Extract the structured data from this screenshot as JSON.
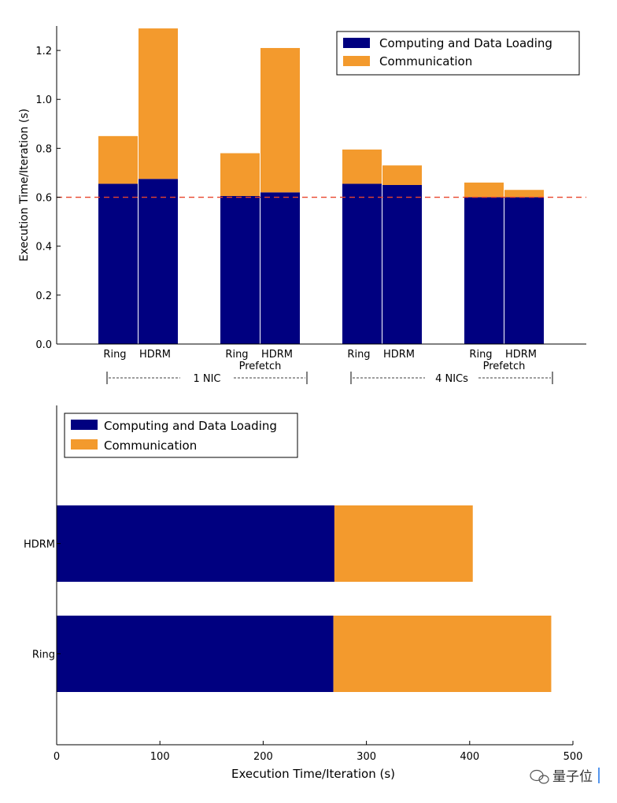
{
  "colors": {
    "computing": "#000080",
    "communication": "#F39A2D",
    "threshold": "#E8452C"
  },
  "watermark": {
    "text": "量子位"
  },
  "chart_data": [
    {
      "type": "bar",
      "orientation": "vertical",
      "stacked": true,
      "ylabel": "Execution Time/Iteration (s)",
      "ylim": [
        0,
        1.3
      ],
      "yticks": [
        "0.0",
        "0.2",
        "0.4",
        "0.6",
        "0.8",
        "1.0",
        "1.2"
      ],
      "ytick_values": [
        0,
        0.2,
        0.4,
        0.6,
        0.8,
        1.0,
        1.2
      ],
      "threshold": 0.6,
      "legend": {
        "position": "top-right",
        "entries": [
          "Computing and Data Loading",
          "Communication"
        ]
      },
      "bars": [
        {
          "label": "Ring",
          "sublabel": "",
          "computing": 0.655,
          "total": 0.85
        },
        {
          "label": "HDRM",
          "sublabel": "",
          "computing": 0.675,
          "total": 1.29
        },
        {
          "label": "Ring",
          "sublabel": "Prefetch",
          "computing": 0.605,
          "total": 0.78
        },
        {
          "label": "HDRM",
          "sublabel": "Prefetch",
          "computing": 0.62,
          "total": 1.21
        },
        {
          "label": "Ring",
          "sublabel": "",
          "computing": 0.655,
          "total": 0.795
        },
        {
          "label": "HDRM",
          "sublabel": "",
          "computing": 0.65,
          "total": 0.73
        },
        {
          "label": "Ring",
          "sublabel": "Prefetch",
          "computing": 0.6,
          "total": 0.66
        },
        {
          "label": "HDRM",
          "sublabel": "Prefetch",
          "computing": 0.6,
          "total": 0.63
        }
      ],
      "groups": [
        {
          "label": "1 NIC",
          "from": 0,
          "to": 3
        },
        {
          "label": "4 NICs",
          "from": 4,
          "to": 7
        }
      ]
    },
    {
      "type": "bar",
      "orientation": "horizontal",
      "stacked": true,
      "xlabel": "Execution Time/Iteration (s)",
      "xlim": [
        0,
        500
      ],
      "xticks": [
        "0",
        "100",
        "200",
        "300",
        "400",
        "500"
      ],
      "xtick_values": [
        0,
        100,
        200,
        300,
        400,
        500
      ],
      "legend": {
        "position": "top-left",
        "entries": [
          "Computing and Data Loading",
          "Communication"
        ]
      },
      "bars": [
        {
          "label": "HDRM",
          "computing": 269,
          "total": 403
        },
        {
          "label": "Ring",
          "computing": 268,
          "total": 479
        }
      ]
    }
  ]
}
